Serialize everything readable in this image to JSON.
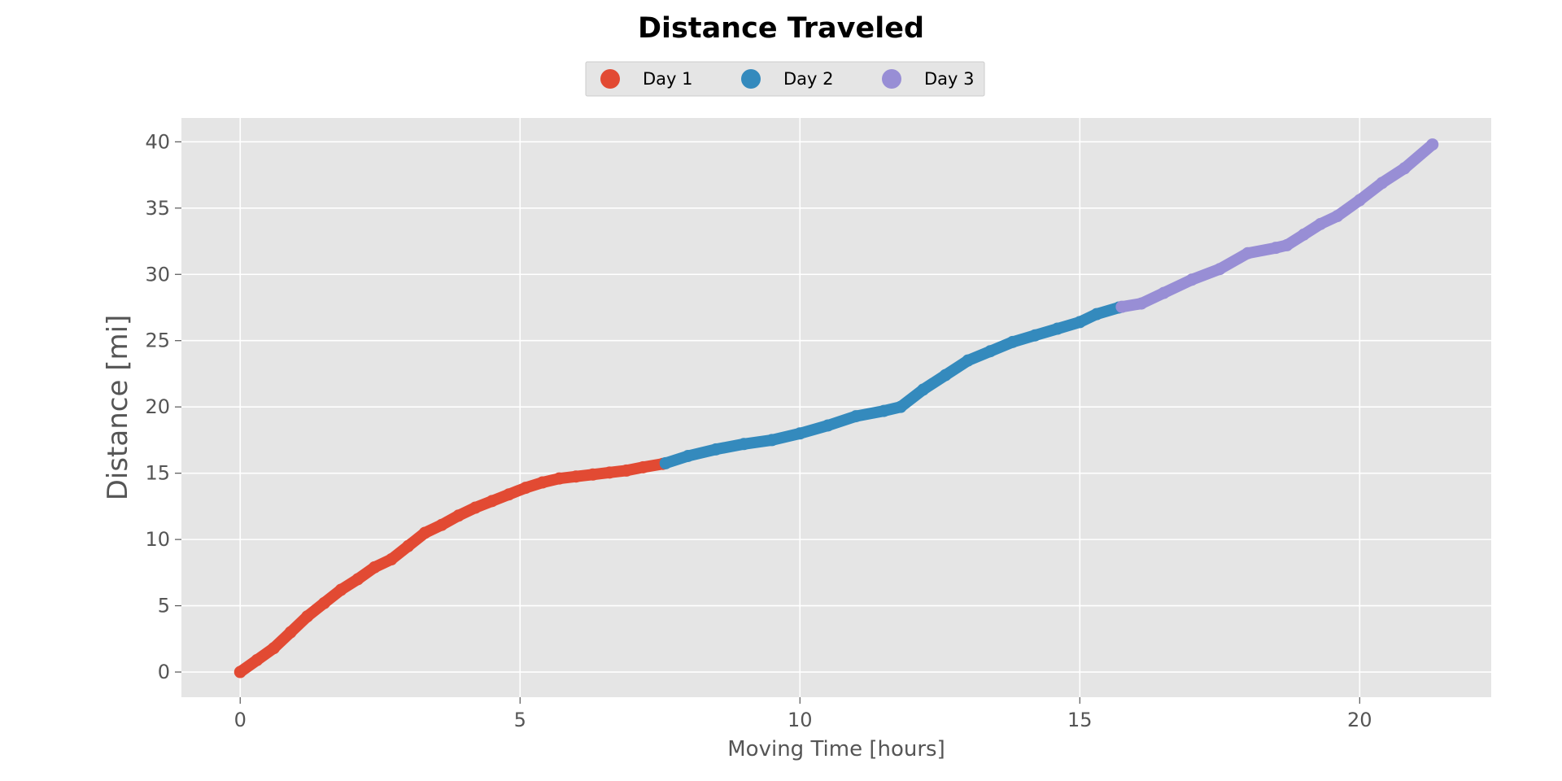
{
  "chart_data": {
    "type": "scatter",
    "title": "Distance Traveled",
    "xlabel": "Moving Time [hours]",
    "ylabel": "Distance [mi]",
    "xlim": [
      -1.05,
      22.35
    ],
    "ylim": [
      -1.9,
      41.8
    ],
    "xticks": [
      0,
      5,
      10,
      15,
      20
    ],
    "yticks": [
      0,
      5,
      10,
      15,
      20,
      25,
      30,
      35,
      40
    ],
    "grid": true,
    "legend": {
      "position": "top-center",
      "columns": 3
    },
    "series": [
      {
        "name": "Day 1",
        "color": "#E24A33",
        "x": [
          0,
          0.3,
          0.6,
          0.9,
          1.2,
          1.5,
          1.8,
          2.1,
          2.4,
          2.7,
          3.0,
          3.3,
          3.6,
          3.9,
          4.2,
          4.5,
          4.8,
          5.1,
          5.4,
          5.7,
          6.0,
          6.3,
          6.6,
          6.9,
          7.2,
          7.55
        ],
        "y": [
          0,
          0.9,
          1.8,
          3.0,
          4.2,
          5.2,
          6.2,
          7.0,
          7.9,
          8.5,
          9.5,
          10.5,
          11.1,
          11.8,
          12.4,
          12.9,
          13.4,
          13.9,
          14.3,
          14.6,
          14.75,
          14.9,
          15.05,
          15.2,
          15.45,
          15.7
        ]
      },
      {
        "name": "Day 2",
        "color": "#348ABD",
        "x": [
          7.6,
          8.0,
          8.5,
          9.0,
          9.5,
          10.0,
          10.5,
          11.0,
          11.5,
          11.8,
          12.2,
          12.6,
          13.0,
          13.4,
          13.8,
          14.2,
          14.6,
          15.0,
          15.3,
          15.7
        ],
        "y": [
          15.75,
          16.3,
          16.8,
          17.2,
          17.5,
          18.0,
          18.6,
          19.3,
          19.7,
          20.0,
          21.3,
          22.4,
          23.5,
          24.2,
          24.9,
          25.4,
          25.9,
          26.4,
          27.0,
          27.5
        ]
      },
      {
        "name": "Day 3",
        "color": "#988ED5",
        "x": [
          15.75,
          16.1,
          16.5,
          17.0,
          17.5,
          18.0,
          18.5,
          18.7,
          19.0,
          19.3,
          19.6,
          20.0,
          20.4,
          20.8,
          21.3
        ],
        "y": [
          27.55,
          27.8,
          28.6,
          29.6,
          30.4,
          31.6,
          32.0,
          32.2,
          33.0,
          33.8,
          34.4,
          35.6,
          36.9,
          38.0,
          39.8
        ]
      }
    ]
  }
}
